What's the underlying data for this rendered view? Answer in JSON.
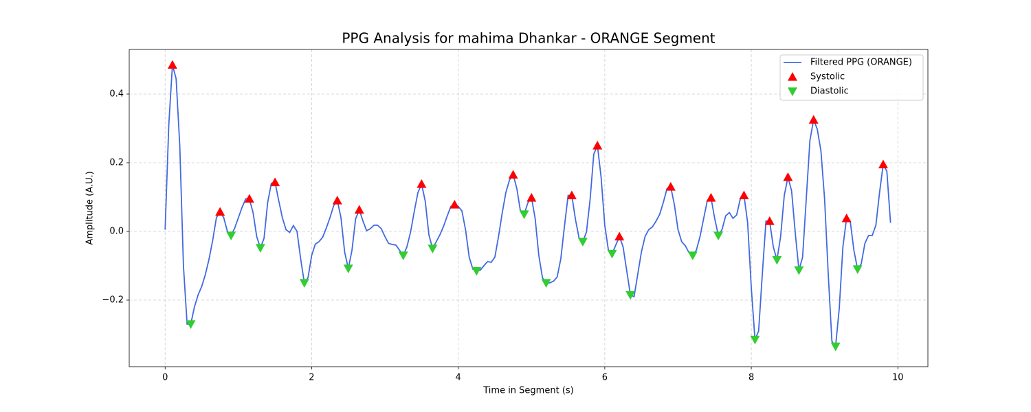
{
  "chart_data": {
    "type": "line",
    "title": "PPG Analysis for mahima Dhankar - ORANGE Segment",
    "x_label": "Time in Segment (s)",
    "y_label": "Amplitude (A.U.)",
    "xlim": [
      -0.49,
      10.41
    ],
    "ylim": [
      -0.394,
      0.53
    ],
    "xticks": [
      0,
      2,
      4,
      6,
      8,
      10
    ],
    "yticks": [
      {
        "value": -0.2,
        "label": "−0.2"
      },
      {
        "value": 0,
        "label": "0.0"
      },
      0.2,
      0.4
    ],
    "grid": true,
    "legend": "upper right",
    "series": [
      {
        "name": "Filtered PPG (ORANGE)",
        "color": "#4169e1",
        "kind": "line",
        "x": [
          0,
          0.05,
          0.1,
          0.15,
          0.2,
          0.25,
          0.3,
          0.35,
          0.4,
          0.45,
          0.5,
          0.55,
          0.6,
          0.65,
          0.7,
          0.75,
          0.8,
          0.85,
          0.9,
          0.95,
          1.0,
          1.05,
          1.1,
          1.15,
          1.2,
          1.25,
          1.3,
          1.35,
          1.4,
          1.45,
          1.5,
          1.55,
          1.6,
          1.65,
          1.7,
          1.75,
          1.8,
          1.85,
          1.9,
          1.95,
          2.0,
          2.05,
          2.1,
          2.15,
          2.2,
          2.25,
          2.3,
          2.35,
          2.4,
          2.45,
          2.5,
          2.55,
          2.6,
          2.65,
          2.7,
          2.75,
          2.8,
          2.85,
          2.9,
          2.95,
          3.0,
          3.05,
          3.1,
          3.15,
          3.2,
          3.25,
          3.3,
          3.35,
          3.4,
          3.45,
          3.5,
          3.55,
          3.6,
          3.65,
          3.7,
          3.75,
          3.8,
          3.85,
          3.9,
          3.95,
          4.0,
          4.05,
          4.1,
          4.15,
          4.2,
          4.25,
          4.3,
          4.35,
          4.4,
          4.45,
          4.5,
          4.55,
          4.6,
          4.65,
          4.7,
          4.75,
          4.8,
          4.85,
          4.9,
          4.95,
          5.0,
          5.05,
          5.1,
          5.15,
          5.2,
          5.25,
          5.3,
          5.35,
          5.4,
          5.45,
          5.5,
          5.55,
          5.6,
          5.65,
          5.7,
          5.75,
          5.8,
          5.85,
          5.9,
          5.95,
          6.0,
          6.05,
          6.1,
          6.15,
          6.2,
          6.25,
          6.3,
          6.35,
          6.4,
          6.45,
          6.5,
          6.55,
          6.6,
          6.65,
          6.7,
          6.75,
          6.8,
          6.85,
          6.9,
          6.95,
          7.0,
          7.05,
          7.1,
          7.15,
          7.2,
          7.25,
          7.3,
          7.35,
          7.4,
          7.45,
          7.5,
          7.55,
          7.6,
          7.65,
          7.7,
          7.75,
          7.8,
          7.85,
          7.9,
          7.95,
          8.0,
          8.05,
          8.1,
          8.15,
          8.2,
          8.25,
          8.3,
          8.35,
          8.4,
          8.45,
          8.5,
          8.55,
          8.6,
          8.65,
          8.7,
          8.75,
          8.8,
          8.85,
          8.9,
          8.95,
          9.0,
          9.05,
          9.1,
          9.15,
          9.2,
          9.25,
          9.3,
          9.35,
          9.4,
          9.45,
          9.5,
          9.55,
          9.6,
          9.65,
          9.7,
          9.75,
          9.8,
          9.85,
          9.9
        ],
        "values": [
          0.005,
          0.31,
          0.485,
          0.445,
          0.25,
          -0.1,
          -0.27,
          -0.27,
          -0.22,
          -0.185,
          -0.16,
          -0.125,
          -0.08,
          -0.025,
          0.04,
          0.057,
          0.04,
          0.0,
          -0.012,
          0.01,
          0.04,
          0.07,
          0.095,
          0.095,
          0.055,
          -0.015,
          -0.048,
          -0.02,
          0.085,
          0.14,
          0.143,
          0.09,
          0.04,
          0.005,
          -0.003,
          0.017,
          0.0,
          -0.08,
          -0.15,
          -0.135,
          -0.07,
          -0.037,
          -0.03,
          -0.017,
          0.01,
          0.04,
          0.075,
          0.09,
          0.04,
          -0.06,
          -0.108,
          -0.055,
          0.037,
          0.063,
          0.03,
          0.002,
          0.008,
          0.018,
          0.018,
          0.008,
          -0.015,
          -0.035,
          -0.038,
          -0.04,
          -0.055,
          -0.07,
          -0.045,
          -0.002,
          0.058,
          0.113,
          0.138,
          0.088,
          -0.01,
          -0.05,
          -0.03,
          -0.01,
          0.015,
          0.045,
          0.073,
          0.078,
          0.073,
          0.06,
          0.005,
          -0.075,
          -0.11,
          -0.115,
          -0.113,
          -0.1,
          -0.088,
          -0.09,
          -0.075,
          -0.015,
          0.053,
          0.113,
          0.15,
          0.165,
          0.125,
          0.058,
          0.05,
          0.083,
          0.098,
          0.038,
          -0.07,
          -0.135,
          -0.15,
          -0.15,
          -0.145,
          -0.133,
          -0.08,
          0.015,
          0.105,
          0.105,
          0.035,
          -0.02,
          -0.03,
          -0.002,
          0.093,
          0.225,
          0.25,
          0.158,
          0.018,
          -0.055,
          -0.065,
          -0.04,
          -0.015,
          -0.045,
          -0.115,
          -0.185,
          -0.19,
          -0.125,
          -0.06,
          -0.015,
          0.005,
          0.013,
          0.03,
          0.05,
          0.085,
          0.125,
          0.13,
          0.078,
          0.005,
          -0.03,
          -0.042,
          -0.062,
          -0.07,
          -0.055,
          -0.015,
          0.038,
          0.09,
          0.098,
          0.038,
          -0.012,
          0.005,
          0.045,
          0.055,
          0.038,
          0.048,
          0.095,
          0.105,
          0.025,
          -0.165,
          -0.315,
          -0.29,
          -0.125,
          0.03,
          0.03,
          -0.045,
          -0.083,
          -0.015,
          0.105,
          0.158,
          0.118,
          -0.005,
          -0.113,
          -0.075,
          0.095,
          0.265,
          0.325,
          0.298,
          0.235,
          0.095,
          -0.125,
          -0.32,
          -0.335,
          -0.225,
          -0.045,
          0.038,
          0.03,
          -0.055,
          -0.11,
          -0.095,
          -0.035,
          -0.012,
          -0.012,
          0.018,
          0.113,
          0.195,
          0.175,
          0.025
        ]
      },
      {
        "name": "Systolic",
        "color": "#ff0000",
        "kind": "triangle-up",
        "x": [
          0.1,
          0.75,
          1.15,
          1.5,
          2.35,
          2.65,
          3.5,
          3.95,
          4.75,
          5.0,
          5.55,
          5.9,
          6.2,
          6.9,
          7.45,
          7.9,
          8.25,
          8.5,
          8.85,
          9.3,
          9.8
        ],
        "values": [
          0.485,
          0.057,
          0.095,
          0.143,
          0.09,
          0.063,
          0.138,
          0.078,
          0.165,
          0.098,
          0.105,
          0.25,
          -0.015,
          0.13,
          0.098,
          0.105,
          0.03,
          0.158,
          0.325,
          0.038,
          0.195
        ]
      },
      {
        "name": "Diastolic",
        "color": "#32cd32",
        "kind": "triangle-down",
        "x": [
          0.35,
          0.9,
          1.3,
          1.9,
          2.5,
          3.25,
          3.65,
          4.25,
          4.9,
          5.2,
          5.7,
          6.1,
          6.35,
          7.2,
          7.55,
          8.05,
          8.35,
          8.65,
          9.15,
          9.45
        ],
        "values": [
          -0.27,
          -0.012,
          -0.048,
          -0.15,
          -0.108,
          -0.07,
          -0.05,
          -0.115,
          0.05,
          -0.15,
          -0.03,
          -0.065,
          -0.185,
          -0.07,
          -0.012,
          -0.315,
          -0.083,
          -0.113,
          -0.335,
          -0.11
        ]
      }
    ]
  }
}
